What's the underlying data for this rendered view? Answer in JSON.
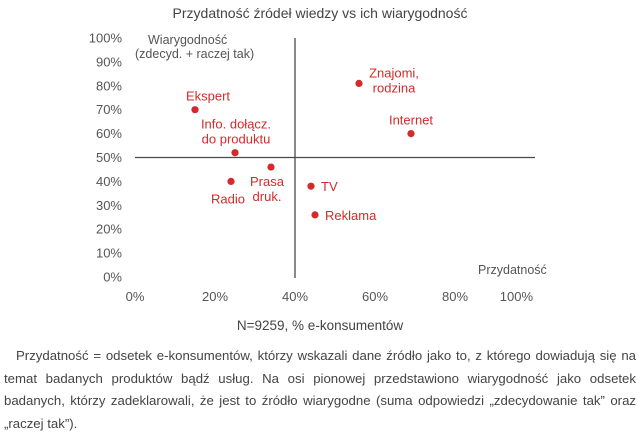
{
  "chart_data": {
    "type": "scatter",
    "title": "Przydatność źródeł wiedzy vs ich wiarygodność",
    "xlabel": "Przydatność",
    "ylabel": [
      "Wiarygodność",
      "(zdecyd. + raczej tak)"
    ],
    "xlim": [
      0,
      100
    ],
    "ylim": [
      0,
      100
    ],
    "x_ticks": [
      "0%",
      "20%",
      "40%",
      "60%",
      "80%",
      "100%"
    ],
    "y_ticks": [
      "0%",
      "10%",
      "20%",
      "30%",
      "40%",
      "50%",
      "60%",
      "70%",
      "80%",
      "90%",
      "100%"
    ],
    "axis_cross": {
      "x": 40,
      "y": 50
    },
    "point_color": "#d42a2a",
    "points": [
      {
        "name": "Ekspert",
        "label_lines": [
          "Ekspert"
        ],
        "x": 15,
        "y": 70,
        "label_pos": "above"
      },
      {
        "name": "Info. dołącz. do produktu",
        "label_lines": [
          "Info. dołącz.",
          "do produktu"
        ],
        "x": 25,
        "y": 52,
        "label_pos": "above"
      },
      {
        "name": "Radio",
        "label_lines": [
          "Radio"
        ],
        "x": 24,
        "y": 40,
        "label_pos": "below"
      },
      {
        "name": "Prasa druk.",
        "label_lines": [
          "Prasa",
          "druk."
        ],
        "x": 34,
        "y": 46,
        "label_pos": "below"
      },
      {
        "name": "TV",
        "label_lines": [
          "TV"
        ],
        "x": 44,
        "y": 38,
        "label_pos": "right"
      },
      {
        "name": "Reklama",
        "label_lines": [
          "Reklama"
        ],
        "x": 45,
        "y": 26,
        "label_pos": "right"
      },
      {
        "name": "Znajomi, rodzina",
        "label_lines": [
          "Znajomi,",
          "rodzina"
        ],
        "x": 56,
        "y": 81,
        "label_pos": "above-right"
      },
      {
        "name": "Internet",
        "label_lines": [
          "Internet"
        ],
        "x": 69,
        "y": 60,
        "label_pos": "above"
      }
    ]
  },
  "footer": {
    "sample": "N=9259, % e-konsumentów",
    "description": "Przydatność = odsetek e-konsumentów, którzy wskazali dane źródło jako to, z którego dowiadują się na temat badanych produktów bądź usług. Na osi pionowej przedstawiono wiarygodność jako odsetek badanych, którzy zadeklarowali, że jest to źródło wiarygodne (suma odpowiedzi „zdecydowanie tak” oraz „raczej tak”)."
  }
}
